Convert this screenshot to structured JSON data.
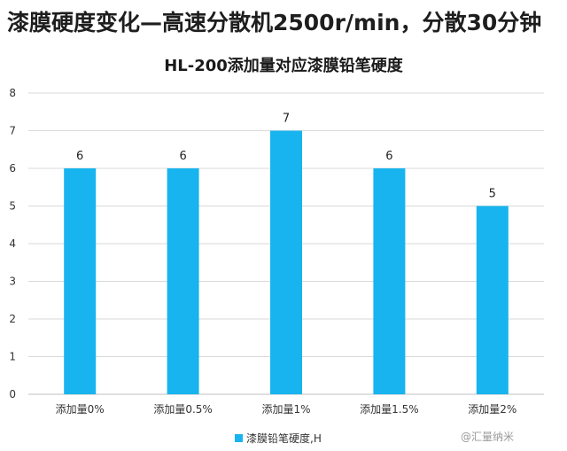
{
  "headline": "漆膜硬度变化—高速分散机2500r/min，分散30分钟",
  "colors": {
    "bar": "#18b4ef",
    "grid": "#d9d9d9",
    "axis": "#bfbfbf"
  },
  "chart_data": {
    "type": "bar",
    "title": "HL-200添加量对应漆膜铅笔硬度",
    "categories": [
      "添加量0%",
      "添加量0.5%",
      "添加量1%",
      "添加量1.5%",
      "添加量2%"
    ],
    "series": [
      {
        "name": "漆膜铅笔硬度,H",
        "values": [
          6,
          6,
          7,
          6,
          5
        ]
      }
    ],
    "ylim": [
      0,
      8
    ],
    "yticks": [
      0,
      1,
      2,
      3,
      4,
      5,
      6,
      7,
      8
    ],
    "grid": true,
    "legend": "bottom"
  },
  "watermark": "@汇量纳米"
}
